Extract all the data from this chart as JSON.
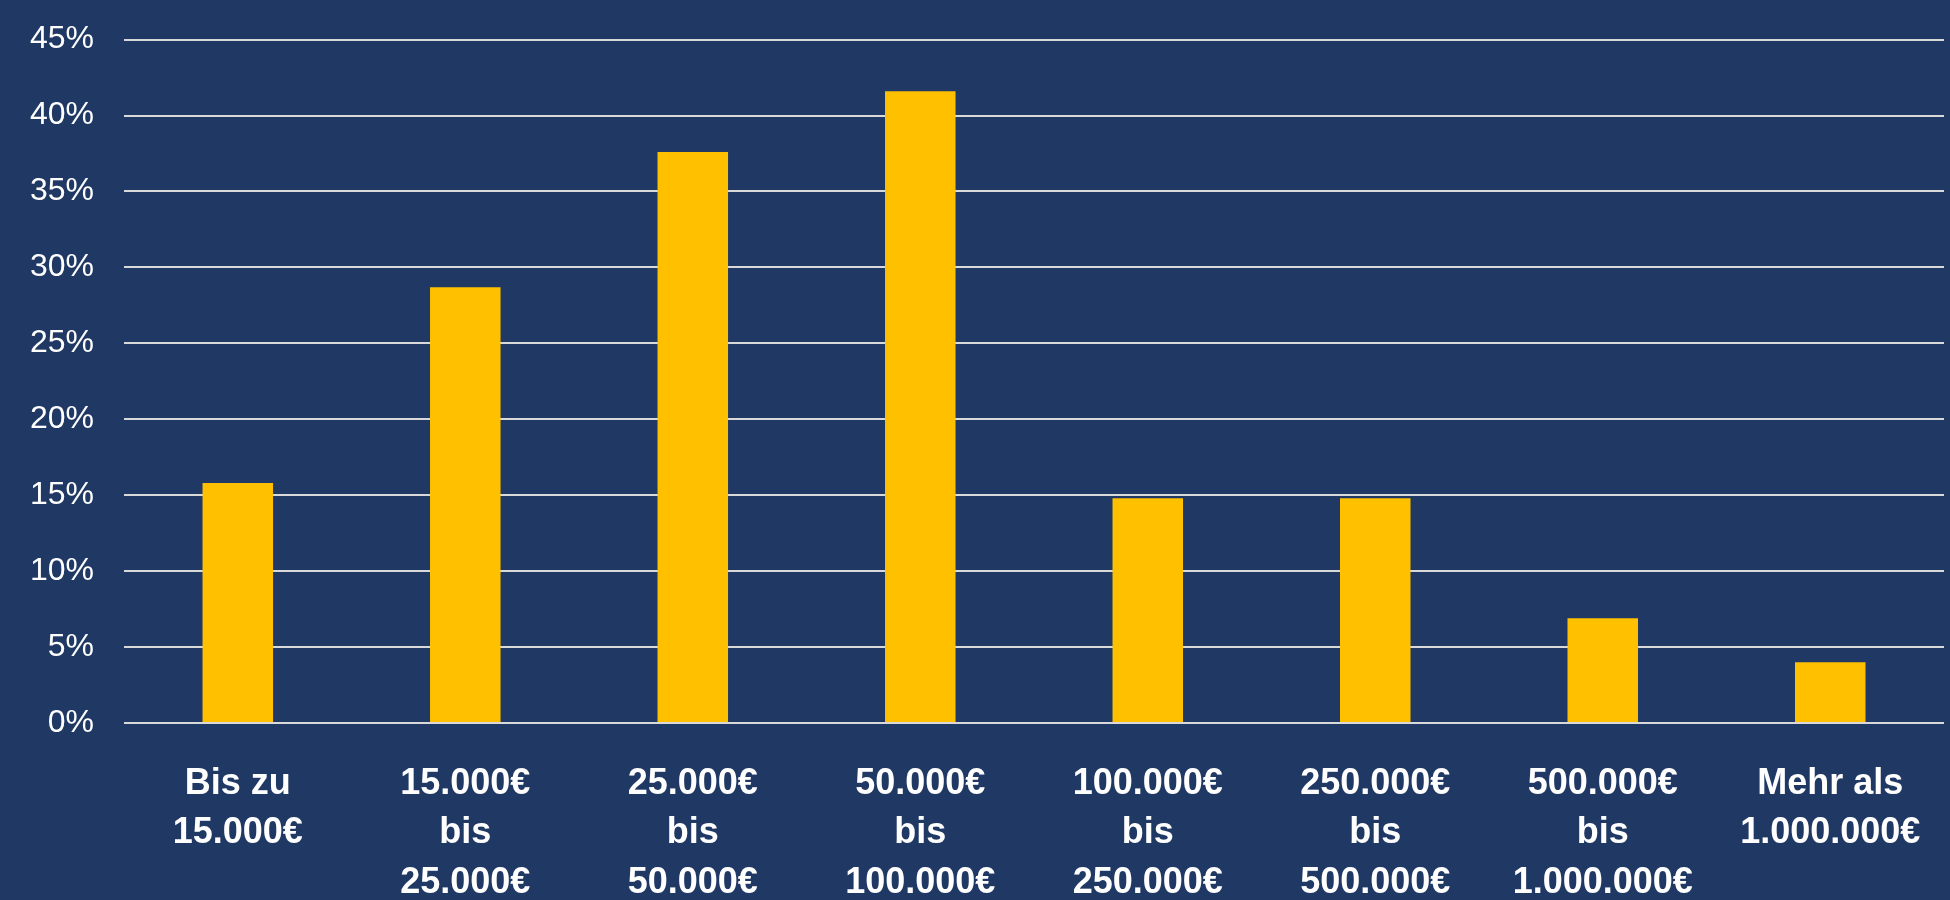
{
  "chart_data": {
    "type": "bar",
    "categories": [
      "Bis zu 15.000€",
      "15.000€ bis 25.000€",
      "25.000€ bis 50.000€",
      "50.000€ bis 100.000€",
      "100.000€ bis 250.000€",
      "250.000€ bis 500.000€",
      "500.000€ bis 1.000.000€",
      "Mehr als 1.000.000€"
    ],
    "values": [
      15.8,
      28.7,
      37.6,
      41.6,
      14.8,
      14.8,
      6.9,
      4.0
    ],
    "color": "#ffc000",
    "ylim": [
      0,
      45
    ],
    "yticks": [
      {
        "value": 0,
        "label": "0%"
      },
      {
        "value": 5,
        "label": "5%"
      },
      {
        "value": 10,
        "label": "10%"
      },
      {
        "value": 15,
        "label": "15%"
      },
      {
        "value": 20,
        "label": "20%"
      },
      {
        "value": 25,
        "label": "25%"
      },
      {
        "value": 30,
        "label": "30%"
      },
      {
        "value": 35,
        "label": "35%"
      },
      {
        "value": 40,
        "label": "40%"
      },
      {
        "value": 45,
        "label": "45%"
      }
    ],
    "grid": "y"
  }
}
